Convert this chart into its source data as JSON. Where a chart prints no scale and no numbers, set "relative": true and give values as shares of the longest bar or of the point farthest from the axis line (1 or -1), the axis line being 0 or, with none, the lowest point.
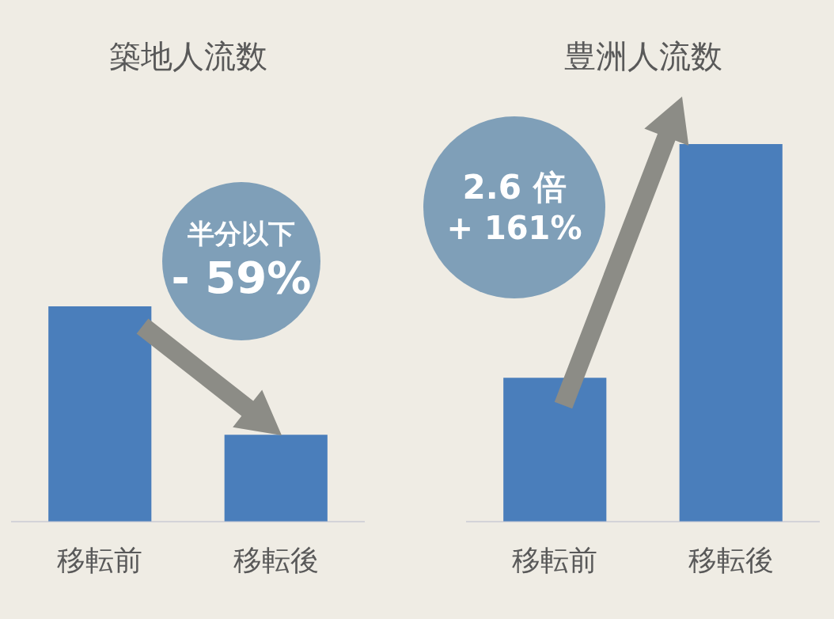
{
  "chart_data": [
    {
      "type": "bar",
      "title": "築地人流数",
      "categories": [
        "移転前",
        "移転後"
      ],
      "values": [
        1,
        0.403
      ],
      "color": "#4a7ebb",
      "relative": true,
      "annotations": [
        "半分以下",
        "- 59%"
      ]
    },
    {
      "type": "bar",
      "title": "豊洲人流数",
      "categories": [
        "移転前",
        "移転後"
      ],
      "values": [
        0.381,
        1
      ],
      "color": "#4a7ebb",
      "relative": true,
      "annotations": [
        "2.6 倍",
        "+ 161%"
      ]
    }
  ]
}
